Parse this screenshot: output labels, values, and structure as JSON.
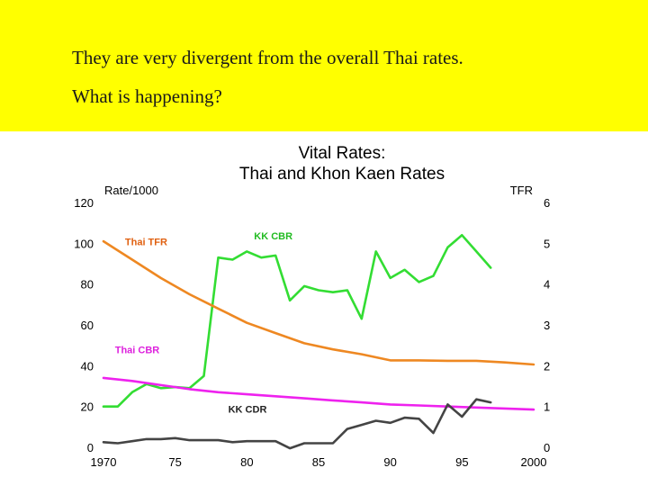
{
  "slide": {
    "line1": "They are very divergent from the overall Thai rates.",
    "line2": "What is happening?"
  },
  "chart_data": {
    "type": "line",
    "title": [
      "Vital Rates:",
      "Thai and Khon Kaen Rates"
    ],
    "xlabel": "",
    "ylabel_left": "Rate/1000",
    "ylabel_right": "TFR",
    "xlim": [
      1970,
      2000
    ],
    "ylim_left": [
      0,
      120
    ],
    "ylim_right": [
      0,
      6
    ],
    "x_ticks": [
      1970,
      1975,
      1980,
      1985,
      1990,
      1995,
      2000
    ],
    "x_tick_labels": [
      "1970",
      "75",
      "80",
      "85",
      "90",
      "95",
      "2000"
    ],
    "y_ticks_left": [
      0,
      20,
      40,
      60,
      80,
      100,
      120
    ],
    "y_ticks_right": [
      0,
      1,
      2,
      3,
      4,
      5,
      6
    ],
    "grid": false,
    "series": [
      {
        "name": "KK CBR",
        "axis": "left",
        "color": "#33dd33",
        "label_color": "#22bb22",
        "label_at": [
          1980.5,
          102
        ],
        "x": [
          1970,
          1971,
          1972,
          1973,
          1974,
          1975,
          1976,
          1977,
          1978,
          1979,
          1980,
          1981,
          1982,
          1983,
          1984,
          1985,
          1986,
          1987,
          1988,
          1989,
          1990,
          1991,
          1992,
          1993,
          1994,
          1995,
          1996,
          1997
        ],
        "values": [
          20,
          20,
          27,
          31,
          29,
          29.5,
          29,
          35,
          93,
          92,
          96,
          93,
          94,
          72,
          79,
          77,
          76,
          77,
          63,
          96,
          83,
          87,
          81,
          84,
          98,
          104,
          96,
          88
        ]
      },
      {
        "name": "Thai TFR",
        "axis": "right",
        "color": "#ee8822",
        "label_color": "#e06010",
        "label_at": [
          1971.5,
          99
        ],
        "x": [
          1970,
          1972,
          1974,
          1976,
          1978,
          1980,
          1982,
          1984,
          1986,
          1988,
          1990,
          1992,
          1994,
          1996,
          1998,
          2000
        ],
        "values": [
          5.05,
          4.6,
          4.15,
          3.75,
          3.4,
          3.05,
          2.8,
          2.55,
          2.4,
          2.28,
          2.13,
          2.13,
          2.12,
          2.12,
          2.08,
          2.03
        ]
      },
      {
        "name": "Thai CBR",
        "axis": "left",
        "color": "#ee22ee",
        "label_color": "#dd22dd",
        "label_at": [
          1970.8,
          46
        ],
        "x": [
          1970,
          1972,
          1974,
          1976,
          1978,
          1980,
          1982,
          1984,
          1986,
          1988,
          1990,
          1992,
          1994,
          1996,
          1998,
          2000
        ],
        "values": [
          34,
          32.5,
          30.5,
          28.5,
          27,
          26,
          25,
          24,
          23,
          22,
          21,
          20.5,
          20,
          19.5,
          19,
          18.5
        ]
      },
      {
        "name": "KK CDR",
        "axis": "left",
        "color": "#444444",
        "label_color": "#222222",
        "label_at": [
          1978.7,
          17
        ],
        "x": [
          1970,
          1971,
          1972,
          1973,
          1974,
          1975,
          1976,
          1977,
          1978,
          1979,
          1980,
          1981,
          1982,
          1983,
          1984,
          1985,
          1986,
          1987,
          1988,
          1989,
          1990,
          1991,
          1992,
          1993,
          1994,
          1995,
          1996,
          1997
        ],
        "values": [
          2.5,
          2,
          3,
          4,
          4,
          4.5,
          3.5,
          3.5,
          3.5,
          2.5,
          3,
          3,
          3,
          -0.5,
          2,
          2,
          2,
          9,
          11,
          13,
          12,
          14.5,
          14,
          7,
          21,
          15,
          23.5,
          22
        ]
      }
    ]
  }
}
